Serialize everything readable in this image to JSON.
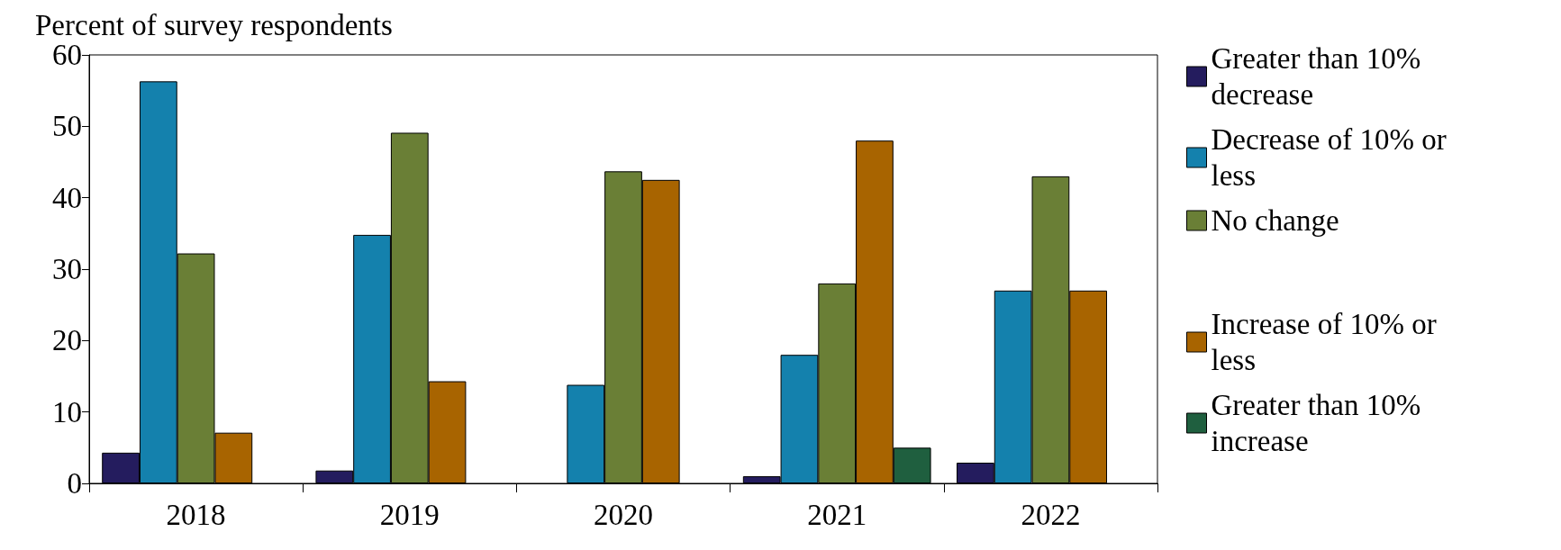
{
  "chart_data": {
    "type": "bar",
    "ylabel": "Percent of survey respondents",
    "categories": [
      "2018",
      "2019",
      "2020",
      "2021",
      "2022"
    ],
    "series": [
      {
        "name": "Greater than 10% decrease",
        "color": "#241c5e",
        "values": [
          4.3,
          1.8,
          null,
          1.0,
          2.9
        ]
      },
      {
        "name": "Decrease of 10% or less",
        "color": "#1481ad",
        "values": [
          56.3,
          34.8,
          13.8,
          18.0,
          27.0
        ]
      },
      {
        "name": "No change",
        "color": "#6a7f36",
        "values": [
          32.2,
          49.1,
          43.7,
          28.0,
          43.0
        ]
      },
      {
        "name": "Increase of 10% or less",
        "color": "#a86400",
        "values": [
          7.1,
          14.3,
          42.5,
          48.0,
          27.0
        ]
      },
      {
        "name": "Greater than 10% increase",
        "color": "#1f5f3f",
        "values": [
          null,
          null,
          null,
          5.0,
          null
        ]
      }
    ],
    "ylim": [
      0,
      60
    ],
    "yticks": [
      0,
      10,
      20,
      30,
      40,
      50,
      60
    ],
    "grid": false,
    "legend": "right"
  }
}
